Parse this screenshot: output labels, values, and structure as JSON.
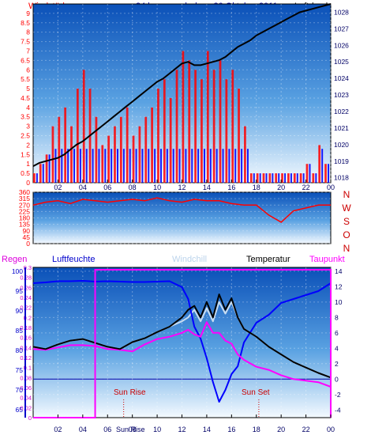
{
  "header": {
    "left_label": "Windstärke",
    "title": "24 hour graph day : 20 Oktober 2011",
    "right_label": "Luftdruck"
  },
  "time_axis": {
    "ticks": [
      "02",
      "04",
      "06",
      "08",
      "10",
      "12",
      "14",
      "16",
      "18",
      "20",
      "22",
      "00"
    ]
  },
  "wind_panel": {
    "left_ticks": [
      "0",
      "0.5",
      "1",
      "1.5",
      "2",
      "2.5",
      "3",
      "3.5",
      "4",
      "4.5",
      "5",
      "5.5",
      "6",
      "6.5",
      "7",
      "7.5",
      "8",
      "8.5",
      "9"
    ],
    "right_ticks": [
      "1018",
      "1019",
      "1020",
      "1021",
      "1022",
      "1023",
      "1024",
      "1025",
      "1026",
      "1027",
      "1028"
    ]
  },
  "direction_panel": {
    "left_ticks": [
      "0",
      "45",
      "90",
      "135",
      "180",
      "225",
      "270",
      "315",
      "360"
    ],
    "right_letters": [
      "N",
      "W",
      "S",
      "O",
      "N"
    ]
  },
  "bottom_panel": {
    "labels": {
      "regen": "Regen",
      "luftfeuchte": "Luftfeuchte",
      "windchill": "Windchill",
      "temperatur": "Temperatur",
      "taupunkt": "Taupunkt"
    },
    "rain_ticks": [
      "0",
      "0.02",
      "0.04",
      "0.06",
      "0.08",
      "0.1",
      "0.12",
      "0.14",
      "0.16",
      "0.18",
      "0.2",
      "0.22",
      "0.24",
      "0.26",
      "0.28",
      "0.3"
    ],
    "humidity_ticks": [
      "65",
      "70",
      "75",
      "80",
      "85",
      "90",
      "95",
      "100"
    ],
    "temp_ticks": [
      "-4",
      "-2",
      "0",
      "2",
      "4",
      "6",
      "8",
      "10",
      "12",
      "14"
    ],
    "sun_rise": "Sun Rise",
    "sun_set": "Sun Set"
  },
  "colors": {
    "wind_red": "#ff0000",
    "gust_blue": "#0000ff",
    "pressure_black": "#000000",
    "humidity_blue": "#0000ff",
    "temperature_black": "#000000",
    "dewpoint_magenta": "#ff00ff",
    "windchill_light": "#c8dcf0"
  },
  "chart_data": [
    {
      "type": "bar",
      "x": [
        0,
        0.5,
        1,
        1.5,
        2,
        2.5,
        3,
        3.5,
        4,
        4.5,
        5,
        5.5,
        6,
        6.5,
        7,
        7.5,
        8,
        8.5,
        9,
        9.5,
        10,
        10.5,
        11,
        11.5,
        12,
        12.5,
        13,
        13.5,
        14,
        14.5,
        15,
        15.5,
        16,
        16.5,
        17,
        17.5,
        18,
        18.5,
        19,
        19.5,
        20,
        20.5,
        21,
        21.5,
        22,
        22.5,
        23,
        23.5,
        24
      ],
      "series": [
        {
          "name": "Windstärke",
          "values": [
            0.5,
            1,
            1.5,
            3,
            3.5,
            4,
            3,
            5,
            6,
            5,
            3.5,
            2,
            2.5,
            3,
            3.5,
            4,
            2.5,
            3,
            3.5,
            4,
            5,
            5.5,
            4.5,
            6,
            7,
            6.5,
            6,
            5.5,
            7,
            6,
            6.5,
            5.5,
            6,
            5,
            3,
            0.5,
            0.5,
            0.5,
            0.5,
            0.5,
            0.5,
            0.5,
            0.5,
            0.5,
            1,
            0.5,
            2,
            1,
            1
          ]
        },
        {
          "name": "Luftdruck",
          "values": [
            1018.7,
            1018.9,
            1019.0,
            1019.1,
            1019.2,
            1019.4,
            1019.7,
            1020.0,
            1020.2,
            1020.5,
            1020.8,
            1021.1,
            1021.4,
            1021.7,
            1022.0,
            1022.3,
            1022.6,
            1022.9,
            1023.2,
            1023.5,
            1023.8,
            1024.0,
            1024.3,
            1024.6,
            1024.9,
            1025.0,
            1024.8,
            1024.8,
            1024.9,
            1025.0,
            1025.1,
            1025.3,
            1025.6,
            1025.9,
            1026.1,
            1026.3,
            1026.6,
            1026.8,
            1027.0,
            1027.2,
            1027.4,
            1027.6,
            1027.8,
            1028.0,
            1028.1,
            1028.2,
            1028.3,
            1028.4,
            1028.5
          ]
        }
      ],
      "ylim": [
        0,
        9.5
      ],
      "y2lim": [
        1017.7,
        1028.5
      ]
    },
    {
      "type": "line",
      "x": [
        0,
        1,
        2,
        3,
        4,
        5,
        6,
        7,
        8,
        9,
        10,
        11,
        12,
        13,
        14,
        15,
        16,
        17,
        18,
        19,
        20,
        21,
        22,
        23,
        24
      ],
      "series": [
        {
          "name": "Windrichtung",
          "values": [
            270,
            290,
            300,
            280,
            310,
            300,
            290,
            300,
            310,
            300,
            320,
            300,
            290,
            310,
            300,
            300,
            280,
            270,
            270,
            200,
            150,
            230,
            250,
            270,
            270
          ]
        }
      ],
      "ylim": [
        0,
        360
      ]
    },
    {
      "type": "line",
      "x": [
        0,
        1,
        2,
        3,
        4,
        5,
        6,
        7,
        8,
        9,
        10,
        11,
        12,
        12.5,
        13,
        13.5,
        14,
        14.5,
        15,
        15.5,
        16,
        16.5,
        17,
        18,
        19,
        20,
        21,
        22,
        23,
        24
      ],
      "series": [
        {
          "name": "Temperatur",
          "values": [
            4.2,
            3.9,
            4.5,
            5.0,
            5.2,
            4.7,
            4.2,
            3.9,
            4.8,
            5.3,
            6.1,
            6.8,
            8.0,
            9.0,
            9.5,
            8.0,
            10.0,
            8.0,
            11.0,
            9.0,
            10.5,
            8.0,
            6.5,
            5.5,
            4.2,
            3.2,
            2.2,
            1.5,
            0.8,
            0.2
          ]
        },
        {
          "name": "Taupunkt",
          "values": [
            3.9,
            3.8,
            4.1,
            4.4,
            4.4,
            4.3,
            3.9,
            3.8,
            3.6,
            4.5,
            5.2,
            5.5,
            6.0,
            6.4,
            5.8,
            5.5,
            7.4,
            6.0,
            6.0,
            5.0,
            4.6,
            3.2,
            2.5,
            1.6,
            1.2,
            0.5,
            0.0,
            -0.2,
            -0.4,
            -1.0
          ]
        },
        {
          "name": "Luftfeuchte",
          "values": [
            97.0,
            97.2,
            97.5,
            97.5,
            97.6,
            97.4,
            97.5,
            97.4,
            97.3,
            97.3,
            97.4,
            97.5,
            96.0,
            93.0,
            86.0,
            83.0,
            78.0,
            72.0,
            67.0,
            70.0,
            74.0,
            76.0,
            82.0,
            87.0,
            89.0,
            92.0,
            93.0,
            94.0,
            95.0,
            97.0
          ]
        },
        {
          "name": "Windchill",
          "values": [
            4.2,
            3.9,
            4.5,
            5.0,
            5.2,
            4.7,
            4.2,
            3.9,
            4.8,
            5.3,
            6.1,
            6.8,
            7.5,
            8.0,
            9.0,
            7.5,
            9.2,
            7.5,
            10.0,
            8.5,
            10.0,
            8.0,
            6.5,
            5.5,
            4.2,
            3.2,
            2.2,
            1.5,
            0.8,
            0.2
          ]
        }
      ],
      "ylim": [
        -5,
        14.5
      ],
      "y2lim": [
        63,
        101
      ]
    }
  ]
}
